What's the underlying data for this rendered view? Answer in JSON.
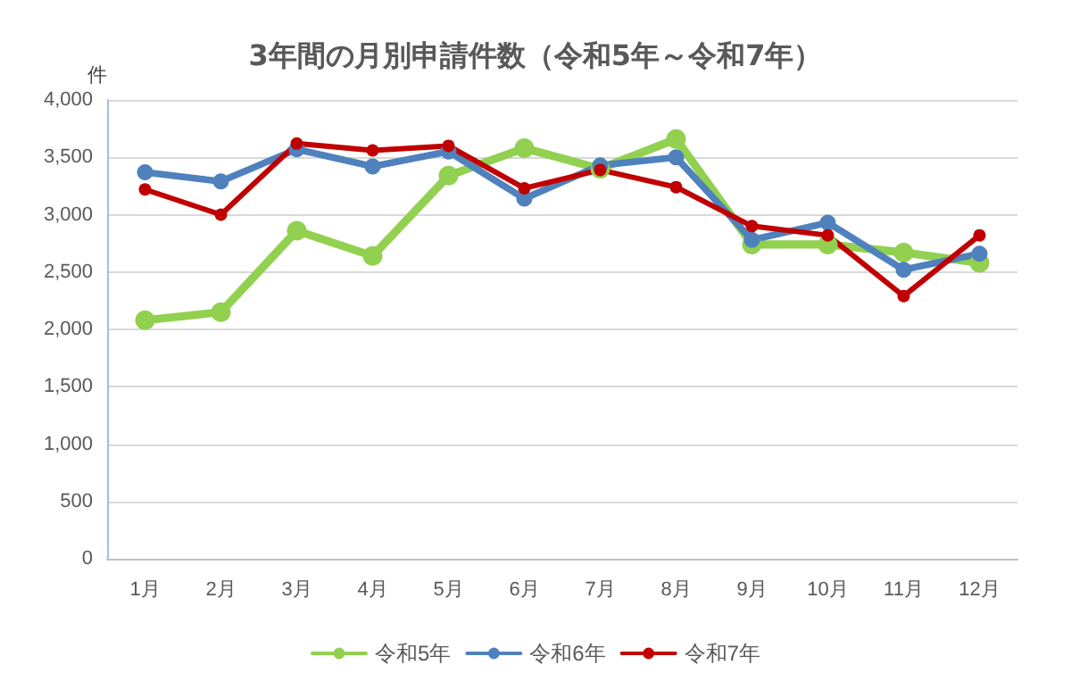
{
  "chart_data": {
    "type": "line",
    "title": "3年間の月別申請件数（令和5年～令和7年）",
    "ylabel": "件",
    "categories": [
      "1月",
      "2月",
      "3月",
      "4月",
      "5月",
      "6月",
      "7月",
      "8月",
      "9月",
      "10月",
      "11月",
      "12月"
    ],
    "series": [
      {
        "name": "令和5年",
        "color": "#92d050",
        "values": [
          2080,
          2150,
          2860,
          2640,
          3340,
          3580,
          3400,
          3660,
          2740,
          2740,
          2670,
          2580
        ]
      },
      {
        "name": "令和6年",
        "color": "#4f81bd",
        "values": [
          3370,
          3290,
          3570,
          3420,
          3550,
          3140,
          3430,
          3500,
          2780,
          2930,
          2520,
          2660
        ]
      },
      {
        "name": "令和7年",
        "color": "#c00000",
        "values": [
          3220,
          3000,
          3620,
          3560,
          3600,
          3230,
          3390,
          3240,
          2900,
          2820,
          2290,
          2820
        ]
      }
    ],
    "ylim": [
      0,
      4000
    ],
    "yticks": [
      {
        "value": 0,
        "label": "0"
      },
      {
        "value": 500,
        "label": "500"
      },
      {
        "value": 1000,
        "label": "1,000"
      },
      {
        "value": 1500,
        "label": "1,500"
      },
      {
        "value": 2000,
        "label": "2,000"
      },
      {
        "value": 2500,
        "label": "2,500"
      },
      {
        "value": 3000,
        "label": "3,000"
      },
      {
        "value": 3500,
        "label": "3,500"
      },
      {
        "value": 4000,
        "label": "4,000"
      }
    ],
    "grid": "y",
    "legend": "bottom",
    "marker": "circle",
    "line_style": "solid"
  }
}
